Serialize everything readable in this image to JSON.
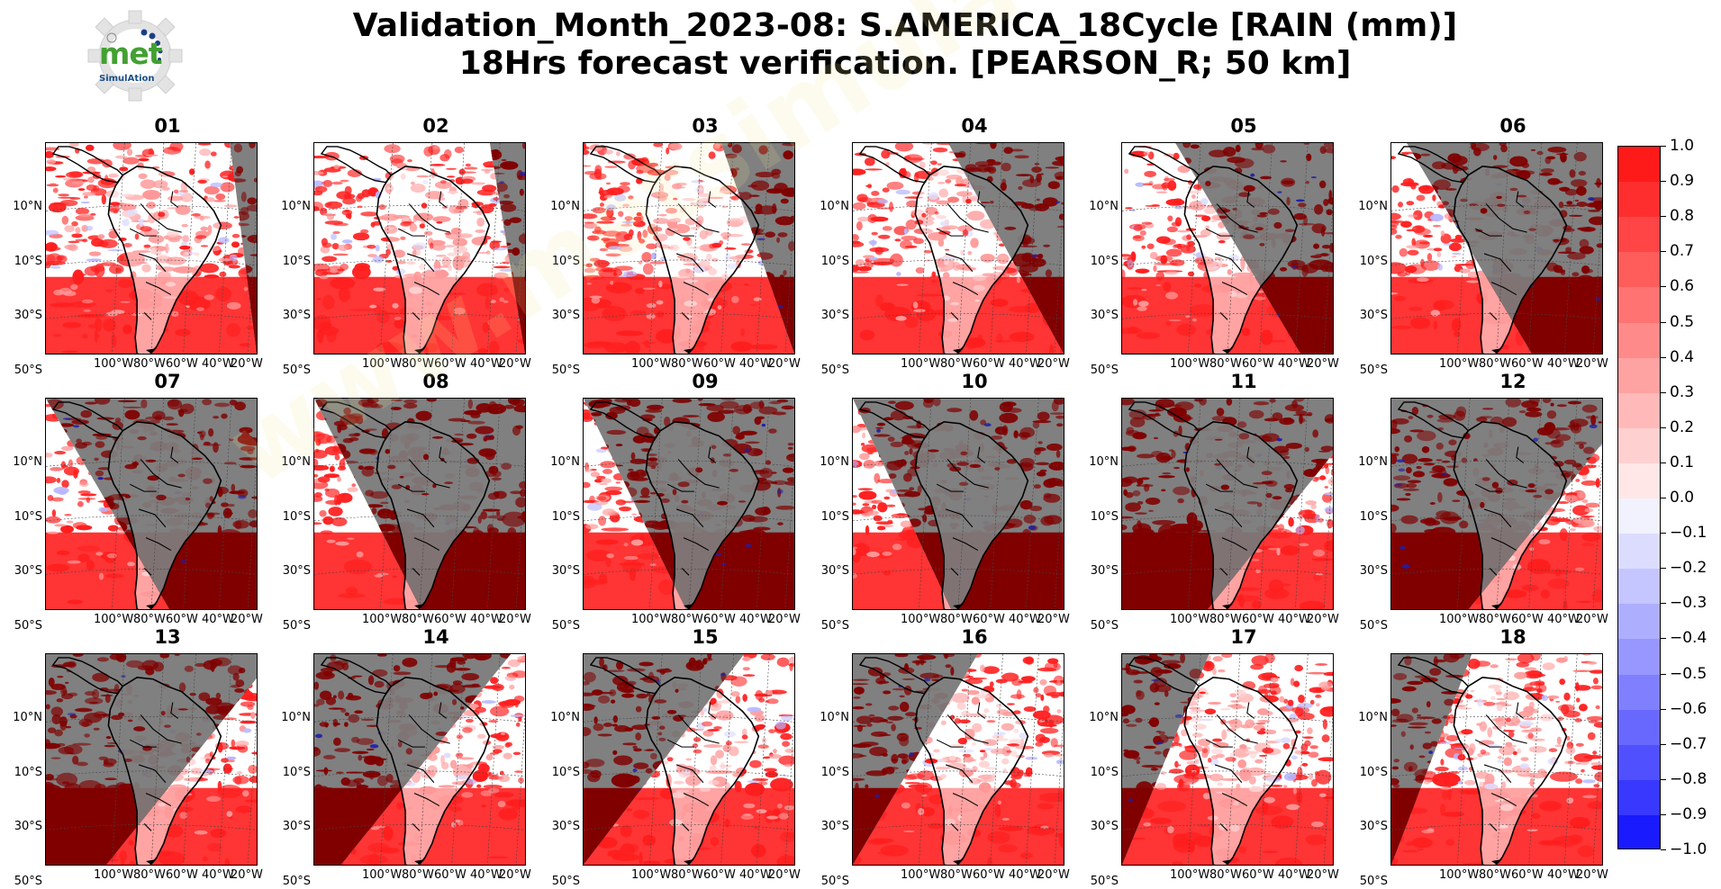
{
  "header": {
    "title_line1": "Validation_Month_2023-08: S.AMERICA_18Cycle [RAIN (mm)]",
    "title_line2": "18Hrs forecast verification.  [PEARSON_R; 50 km]"
  },
  "logo": {
    "word": "met",
    "sub": "SimulAtion"
  },
  "watermark": "www.metsimulation.com",
  "chart_data": {
    "type": "heatmap",
    "variable": "PEARSON_R",
    "panels": [
      {
        "label": "01",
        "night_fraction": 0.0
      },
      {
        "label": "02",
        "night_fraction": 0.04
      },
      {
        "label": "03",
        "night_fraction": 0.22
      },
      {
        "label": "04",
        "night_fraction": 0.42
      },
      {
        "label": "05",
        "night_fraction": 0.62
      },
      {
        "label": "06",
        "night_fraction": 0.8
      },
      {
        "label": "07",
        "night_fraction": 0.88
      },
      {
        "label": "08",
        "night_fraction": 0.96
      },
      {
        "label": "09",
        "night_fraction": 0.98
      },
      {
        "label": "10",
        "night_fraction": 1.0
      },
      {
        "label": "11",
        "night_fraction": 1.0
      },
      {
        "label": "12",
        "night_fraction": 0.96
      },
      {
        "label": "13",
        "night_fraction": 0.88
      },
      {
        "label": "14",
        "night_fraction": 0.72
      },
      {
        "label": "15",
        "night_fraction": 0.55
      },
      {
        "label": "16",
        "night_fraction": 0.38
      },
      {
        "label": "17",
        "night_fraction": 0.2
      },
      {
        "label": "18",
        "night_fraction": 0.1
      }
    ],
    "lat_ticks": [
      "10°N",
      "10°S",
      "30°S",
      "50°S"
    ],
    "lon_ticks": [
      "100°W",
      "80°W",
      "60°W",
      "40°W",
      "20°W"
    ],
    "colorbar": {
      "range": [
        -1.0,
        1.0
      ],
      "ticks": [
        "1.0",
        "0.9",
        "0.8",
        "0.7",
        "0.6",
        "0.5",
        "0.4",
        "0.3",
        "0.2",
        "0.1",
        "0.0",
        "−0.1",
        "−0.2",
        "−0.3",
        "−0.4",
        "−0.5",
        "−0.6",
        "−0.7",
        "−0.8",
        "−0.9",
        "−1.0"
      ],
      "colors": [
        "#ff1a1a",
        "#ff2e2e",
        "#ff4545",
        "#ff5c5c",
        "#ff7373",
        "#ff8a8a",
        "#ffa2a2",
        "#ffb9b9",
        "#ffd0d0",
        "#ffe7e7",
        "#f2f2ff",
        "#dcdcff",
        "#c5c5ff",
        "#aeaeff",
        "#9797ff",
        "#8080ff",
        "#6868ff",
        "#5050ff",
        "#3838ff",
        "#1a1aff"
      ]
    },
    "colors": {
      "night": "#808080",
      "night_rain": "#800000",
      "day_rain": "#ff1e1e",
      "land": "#ffffff"
    }
  }
}
